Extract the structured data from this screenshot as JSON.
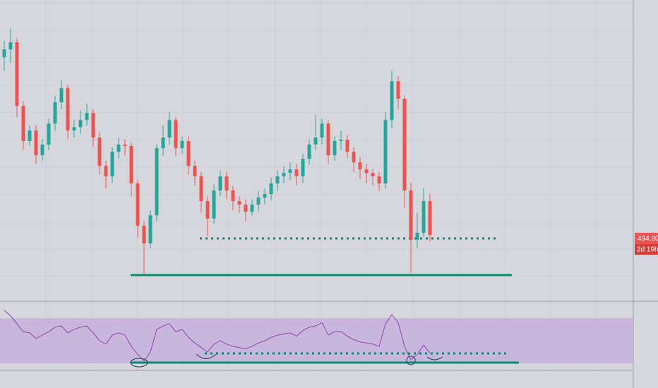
{
  "chart_data": {
    "type": "candlestick",
    "up_color": "#26a69a",
    "down_color": "#ef5350",
    "ylim": [
      470.6,
      581
    ],
    "open": [
      560.0,
      562.9,
      565.5,
      542.2,
      529.3,
      533.2,
      524.1,
      528.0,
      535.7,
      543.5,
      548.7,
      533.2,
      534.4,
      537.0,
      539.6,
      530.6,
      520.2,
      516.4,
      525.4,
      528.0,
      527.5,
      513.8,
      498.3,
      491.8,
      502.1,
      526.7,
      530.6,
      537.0,
      526.7,
      529.3,
      520.2,
      516.4,
      507.3,
      500.9,
      511.2,
      516.4,
      511.2,
      507.3,
      506.0,
      503.4,
      506.0,
      508.6,
      509.9,
      513.8,
      516.4,
      517.6,
      518.9,
      516.4,
      522.8,
      528.0,
      530.6,
      535.7,
      524.1,
      529.3,
      529.8,
      525.4,
      521.5,
      518.9,
      517.6,
      516.4,
      513.8,
      537.0,
      551.2,
      544.8,
      511.2,
      493.1,
      495.7,
      507.3
    ],
    "high": [
      566.0,
      570.5,
      567.0,
      544.0,
      535.0,
      535.0,
      530.0,
      537.5,
      546.0,
      551.5,
      550.0,
      537.0,
      540.5,
      543.0,
      541.0,
      532.5,
      522.0,
      527.0,
      530.5,
      530.0,
      529.0,
      515.0,
      500.0,
      504.0,
      528.0,
      535.0,
      540.0,
      538.0,
      531.0,
      531.0,
      522.0,
      518.0,
      509.0,
      513.5,
      518.5,
      518.0,
      513.0,
      509.0,
      508.0,
      508.0,
      511.0,
      512.0,
      516.0,
      518.5,
      520.0,
      521.5,
      521.0,
      524.5,
      530.0,
      539.0,
      537.5,
      537.0,
      531.0,
      533.0,
      531.5,
      527.0,
      523.5,
      521.0,
      519.0,
      518.0,
      540.0,
      555.0,
      553.0,
      546.0,
      514.0,
      503.0,
      512.0,
      510.0
    ],
    "low": [
      555.0,
      558.0,
      538.0,
      526.0,
      527.5,
      521.0,
      522.0,
      526.0,
      533.0,
      541.0,
      530.0,
      530.5,
      532.0,
      535.0,
      527.0,
      517.0,
      512.0,
      514.0,
      523.0,
      524.0,
      509.0,
      494.0,
      480.2,
      490.0,
      500.0,
      524.0,
      528.0,
      524.0,
      524.5,
      517.0,
      513.0,
      503.0,
      494.5,
      499.0,
      509.0,
      508.0,
      504.0,
      503.0,
      500.0,
      502.0,
      503.5,
      506.0,
      507.5,
      511.0,
      514.0,
      515.0,
      513.0,
      514.0,
      520.5,
      526.0,
      528.0,
      521.0,
      522.0,
      526.0,
      523.0,
      518.0,
      515.5,
      514.0,
      513.0,
      511.0,
      512.0,
      534.0,
      541.0,
      505.0,
      481.0,
      490.0,
      494.0,
      492.5
    ],
    "close": [
      562.9,
      565.5,
      542.2,
      529.3,
      533.2,
      524.1,
      528.0,
      535.7,
      543.5,
      548.7,
      533.2,
      534.4,
      537.0,
      539.6,
      530.6,
      520.2,
      516.4,
      525.4,
      528.0,
      527.5,
      513.8,
      498.3,
      491.8,
      502.1,
      526.7,
      530.6,
      537.0,
      526.7,
      529.3,
      520.2,
      516.4,
      507.3,
      500.9,
      511.2,
      516.4,
      511.2,
      507.3,
      506.0,
      503.4,
      506.0,
      508.6,
      509.9,
      513.8,
      516.4,
      517.6,
      518.9,
      516.4,
      522.8,
      528.0,
      530.6,
      535.7,
      524.1,
      529.3,
      529.8,
      525.4,
      521.5,
      518.9,
      517.6,
      516.4,
      513.8,
      537.0,
      551.2,
      544.8,
      511.2,
      493.1,
      495.7,
      507.3,
      494.9
    ],
    "last_price": {
      "value": 494.9,
      "label": "494.90"
    },
    "countdown": "2d 19h",
    "levels": [
      {
        "value": 480.2,
        "color": "#0e8a6e",
        "style": "solid"
      },
      {
        "value": 493.6,
        "color": "#0e8a6e",
        "style": "dotted"
      }
    ],
    "rsi": {
      "color": "#8e44ad",
      "ylim": [
        25,
        83.1
      ],
      "band": [
        30,
        70
      ],
      "band_color": "#c9b6dd",
      "values": [
        76.9,
        72,
        65,
        58,
        57,
        52,
        55,
        58,
        62,
        63,
        57,
        60,
        62,
        63,
        57,
        50,
        47,
        55,
        57,
        55,
        45,
        38,
        32,
        40,
        60,
        63,
        65,
        58,
        60,
        53,
        48,
        44,
        40,
        47,
        50,
        47,
        45,
        44,
        43,
        45,
        48,
        50,
        53,
        55,
        56,
        57,
        54,
        59,
        62,
        63,
        66,
        55,
        58,
        58,
        54,
        51,
        49,
        48,
        47,
        45,
        65,
        73,
        66,
        45,
        33,
        38,
        46,
        39
      ],
      "levels": [
        {
          "value": 38.75,
          "color": "#0e8a6e",
          "style": "dotted"
        },
        {
          "value": 30.6,
          "color": "#0e8a6e",
          "style": "solid"
        }
      ]
    }
  }
}
